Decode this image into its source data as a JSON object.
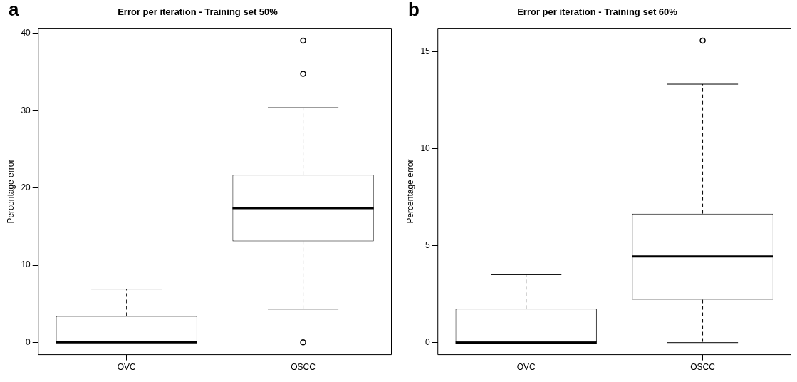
{
  "chart_data": [
    {
      "type": "box",
      "title": "Error per iteration - Training set 50%",
      "ylabel": "Percentage error",
      "annotations": [
        "a"
      ],
      "categories": [
        "OVC",
        "OSCC"
      ],
      "boxes": [
        {
          "low": 0,
          "q1": 0,
          "median": 0,
          "q3": 3.4,
          "high": 6.9
        },
        {
          "low": 4.3,
          "q1": 13.1,
          "median": 17.4,
          "q3": 21.7,
          "high": 30.4,
          "outliers": [
            0,
            34.8,
            39.1
          ]
        }
      ],
      "ylim": [
        -1.6,
        40.7
      ],
      "yticks": [
        0,
        10,
        20,
        30,
        40
      ],
      "grid": false
    },
    {
      "type": "box",
      "title": "Error per iteration - Training set 60%",
      "ylabel": "Percentage error",
      "annotations": [
        "b"
      ],
      "categories": [
        "OVC",
        "OSCC"
      ],
      "boxes": [
        {
          "low": 0,
          "q1": 0,
          "median": 0,
          "q3": 1.74,
          "high": 3.5
        },
        {
          "low": 0,
          "q1": 2.21,
          "median": 4.44,
          "q3": 6.65,
          "high": 13.32,
          "outliers": [
            15.56
          ]
        }
      ],
      "ylim": [
        -0.62,
        16.2
      ],
      "yticks": [
        0,
        5,
        10,
        15
      ],
      "grid": false
    }
  ]
}
